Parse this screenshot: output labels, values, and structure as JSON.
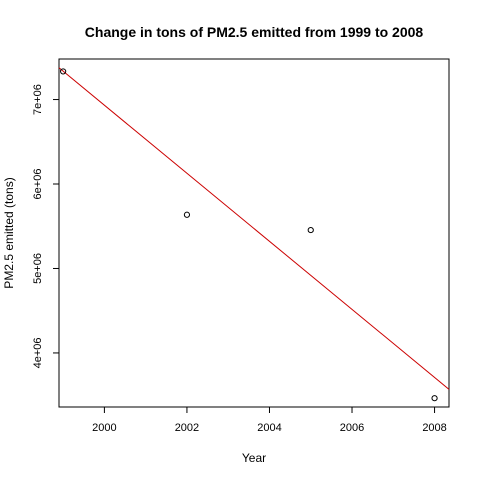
{
  "chart_data": {
    "type": "scatter",
    "title": "Change in tons of PM2.5 emitted from 1999 to 2008",
    "xlabel": "Year",
    "ylabel": "PM2.5 emitted (tons)",
    "xlim": [
      1998.9,
      2008.35
    ],
    "ylim": [
      3360000,
      7480000
    ],
    "x_ticks": [
      2000,
      2002,
      2004,
      2006,
      2008
    ],
    "x_tick_labels": [
      "2000",
      "2002",
      "2004",
      "2006",
      "2008"
    ],
    "y_ticks": [
      4000000,
      5000000,
      6000000,
      7000000
    ],
    "y_tick_labels": [
      "4e+06",
      "5e+06",
      "6e+06",
      "7e+06"
    ],
    "grid": false,
    "legend": "none",
    "series": [
      {
        "x": [
          1999,
          2002,
          2005,
          2008
        ],
        "y": [
          7332967,
          5635780,
          5454703,
          3464206
        ],
        "marker": "open-circle",
        "color": "#000000"
      }
    ],
    "trend_line": {
      "color": "#cc0000",
      "x": [
        1998.9,
        2008.35
      ],
      "y": [
        7376000,
        3569000
      ]
    }
  }
}
